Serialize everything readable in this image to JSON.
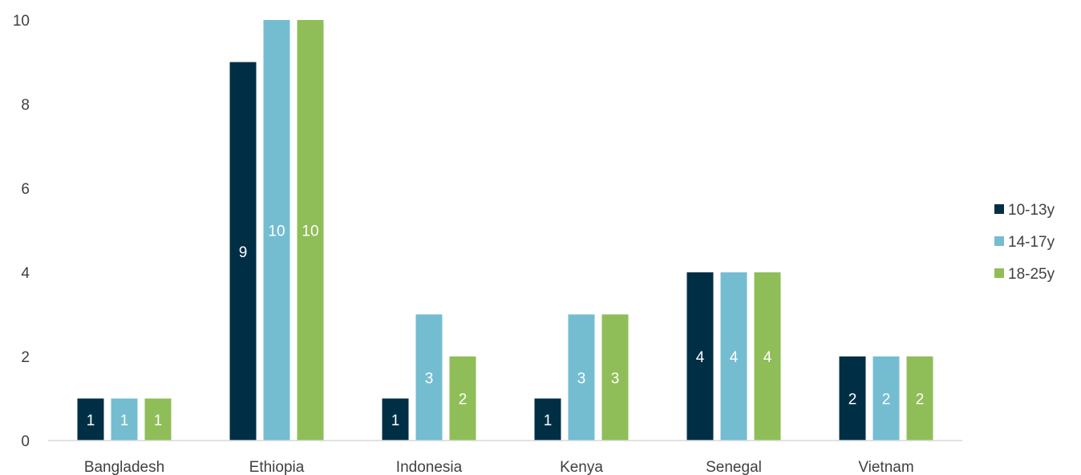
{
  "chart_data": {
    "type": "bar",
    "title": "",
    "xlabel": "",
    "ylabel": "",
    "categories": [
      "Bangladesh",
      "Ethiopia",
      "Indonesia",
      "Kenya",
      "Senegal",
      "Vietnam"
    ],
    "series": [
      {
        "name": "10-13y",
        "color": "#002f45",
        "values": [
          1,
          9,
          1,
          1,
          4,
          2
        ]
      },
      {
        "name": "14-17y",
        "color": "#74bdd1",
        "values": [
          1,
          10,
          3,
          3,
          4,
          2
        ]
      },
      {
        "name": "18-25y",
        "color": "#8fbe58",
        "values": [
          1,
          10,
          2,
          3,
          4,
          2
        ]
      }
    ],
    "ylim": [
      0,
      10
    ],
    "yticks": [
      0,
      2,
      4,
      6,
      8,
      10
    ],
    "grid": false,
    "legend_position": "right",
    "data_labels": true
  }
}
